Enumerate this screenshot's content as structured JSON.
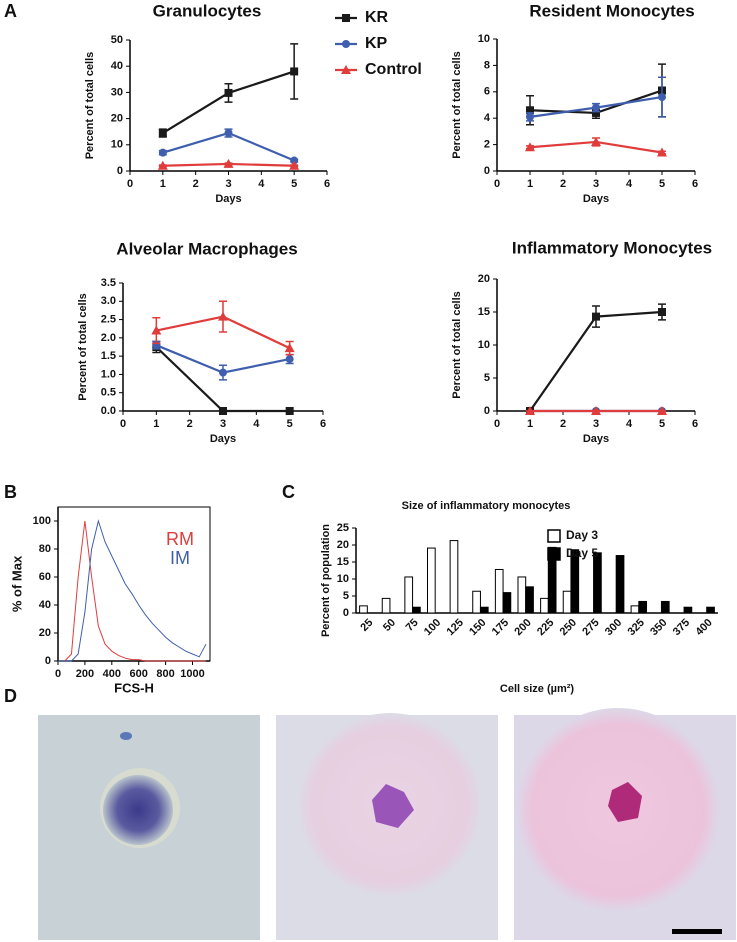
{
  "panel_labels": [
    "A",
    "B",
    "C",
    "D"
  ],
  "chart_data": [
    {
      "type": "line",
      "title": "Granulocytes",
      "x_label": "Days",
      "y_label": "Percent of total cells",
      "x": [
        1,
        3,
        5
      ],
      "xlim": [
        0,
        6
      ],
      "xticks": [
        0,
        1,
        2,
        3,
        4,
        5,
        6
      ],
      "ylim": [
        0,
        50
      ],
      "yticks": [
        0,
        10,
        20,
        30,
        40,
        50
      ],
      "legend": "right",
      "series": [
        {
          "name": "KR",
          "color": "#1a1a1a",
          "marker": "square",
          "values": [
            14.5,
            29.8,
            38
          ],
          "errors": [
            1.5,
            3.5,
            10.5
          ]
        },
        {
          "name": "KP",
          "color": "#3f5fae",
          "marker": "circle",
          "values": [
            7,
            14.5,
            4
          ],
          "errors": [
            0.8,
            1.5,
            0.5
          ]
        },
        {
          "name": "Control",
          "color": "#e03c3c",
          "marker": "triangle",
          "values": [
            2,
            2.7,
            2
          ],
          "errors": [
            0.3,
            0.3,
            0.3
          ]
        }
      ]
    },
    {
      "type": "line",
      "title": "Resident Monocytes",
      "x_label": "Days",
      "y_label": "Percent of total cells",
      "x": [
        1,
        3,
        5
      ],
      "xlim": [
        0,
        6
      ],
      "xticks": [
        0,
        1,
        2,
        3,
        4,
        5,
        6
      ],
      "ylim": [
        0,
        10
      ],
      "yticks": [
        0,
        2,
        4,
        6,
        8,
        10
      ],
      "series": [
        {
          "color": "#1a1a1a",
          "marker": "square",
          "values": [
            4.6,
            4.4,
            6.1
          ],
          "errors": [
            1.1,
            0.4,
            2
          ]
        },
        {
          "color": "#3f5fae",
          "marker": "circle",
          "values": [
            4.1,
            4.8,
            5.6
          ],
          "errors": [
            0.3,
            0.3,
            1.5
          ]
        },
        {
          "color": "#e03c3c",
          "marker": "triangle",
          "values": [
            1.8,
            2.2,
            1.4
          ],
          "errors": [
            0.1,
            0.3,
            0.1
          ]
        }
      ]
    },
    {
      "type": "line",
      "title": "Alveolar Macrophages",
      "x_label": "Days",
      "y_label": "Percent of total cells",
      "x": [
        1,
        3,
        5
      ],
      "xlim": [
        0,
        6
      ],
      "xticks": [
        0,
        1,
        2,
        3,
        4,
        5,
        6
      ],
      "ylim": [
        0,
        3.5
      ],
      "yticks": [
        {
          "value": 0,
          "label": "0.0"
        },
        0.5,
        {
          "value": 1,
          "label": "1.0"
        },
        1.5,
        {
          "value": 2,
          "label": "2.0"
        },
        2.5,
        {
          "value": 3,
          "label": "3.0"
        },
        3.5
      ],
      "series": [
        {
          "color": "#1a1a1a",
          "marker": "square",
          "values": [
            1.75,
            0,
            0
          ],
          "errors": [
            0.15,
            0,
            0
          ]
        },
        {
          "color": "#3f5fae",
          "marker": "circle",
          "values": [
            1.8,
            1.05,
            1.42
          ],
          "errors": [
            0.1,
            0.2,
            0.12
          ]
        },
        {
          "color": "#e03c3c",
          "marker": "triangle",
          "values": [
            2.2,
            2.58,
            1.72
          ],
          "errors": [
            0.35,
            0.42,
            0.18
          ]
        }
      ]
    },
    {
      "type": "line",
      "title": "Inflammatory Monocytes",
      "x_label": "Days",
      "y_label": "Percent of total cells",
      "x": [
        1,
        3,
        5
      ],
      "xlim": [
        0,
        6
      ],
      "xticks": [
        0,
        1,
        2,
        3,
        4,
        5,
        6
      ],
      "ylim": [
        0,
        20
      ],
      "yticks": [
        0,
        5,
        10,
        15,
        20
      ],
      "series": [
        {
          "color": "#3f5fae",
          "marker": "circle",
          "values": [
            0,
            0,
            0
          ],
          "errors": [
            0,
            0,
            0
          ]
        },
        {
          "color": "#1a1a1a",
          "marker": "square",
          "values": [
            0,
            14.3,
            15
          ],
          "errors": [
            0,
            1.6,
            1.2
          ]
        },
        {
          "color": "#e03c3c",
          "marker": "triangle",
          "values": [
            0,
            0,
            0
          ],
          "errors": [
            0,
            0,
            0
          ]
        }
      ]
    },
    {
      "type": "line",
      "x_label": "FCS-H",
      "y_label": "% of Max",
      "frame": true,
      "legend": "upper right",
      "x": [
        0,
        50,
        100,
        150,
        200,
        250,
        300,
        350,
        400,
        450,
        500,
        550,
        600,
        650,
        700,
        750,
        800,
        850,
        900,
        950,
        1000,
        1050,
        1100
      ],
      "xlim": [
        0,
        1130
      ],
      "xticks": [
        0,
        200,
        400,
        600,
        800,
        1000
      ],
      "ylim": [
        0,
        110
      ],
      "yticks": [
        0,
        20,
        40,
        60,
        80,
        100
      ],
      "series": [
        {
          "name": "RM",
          "color": "#e03c3c",
          "values": [
            0,
            0,
            5,
            60,
            100,
            60,
            25,
            12,
            7,
            4,
            2,
            1,
            1,
            0,
            0,
            0,
            0,
            0,
            0,
            0,
            0,
            0,
            0
          ]
        },
        {
          "name": "IM",
          "color": "#3f5fae",
          "values": [
            0,
            0,
            0,
            5,
            35,
            80,
            100,
            85,
            75,
            65,
            55,
            48,
            40,
            33,
            27,
            22,
            17,
            13,
            10,
            7,
            5,
            3,
            12
          ]
        }
      ]
    },
    {
      "type": "bar",
      "title": "Size of inflammatory monocytes",
      "x_label": "Cell size (µm²)",
      "y_label": "Percent of population",
      "legend": "upper right",
      "categories": [
        "25",
        "50",
        "75",
        "100",
        "125",
        "150",
        "175",
        "200",
        "225",
        "250",
        "275",
        "300",
        "325",
        "350",
        "375",
        "400"
      ],
      "ylim": [
        0,
        25
      ],
      "yticks": [
        0,
        5,
        10,
        15,
        20,
        25
      ],
      "series": [
        {
          "name": "Day 3",
          "color": "#ffffff",
          "edgecolor": "#000000",
          "values": [
            2.1,
            4.3,
            10.6,
            19.1,
            21.3,
            6.4,
            12.8,
            10.6,
            4.3,
            6.4,
            0,
            0,
            2.1,
            0,
            0,
            0
          ]
        },
        {
          "name": "Day 5",
          "color": "#000000",
          "edgecolor": "#000000",
          "values": [
            0,
            0,
            1.7,
            0,
            0,
            1.7,
            6,
            7.7,
            19.3,
            18.6,
            17.7,
            16.9,
            3.4,
            3.4,
            1.7,
            1.7
          ]
        }
      ]
    }
  ]
}
